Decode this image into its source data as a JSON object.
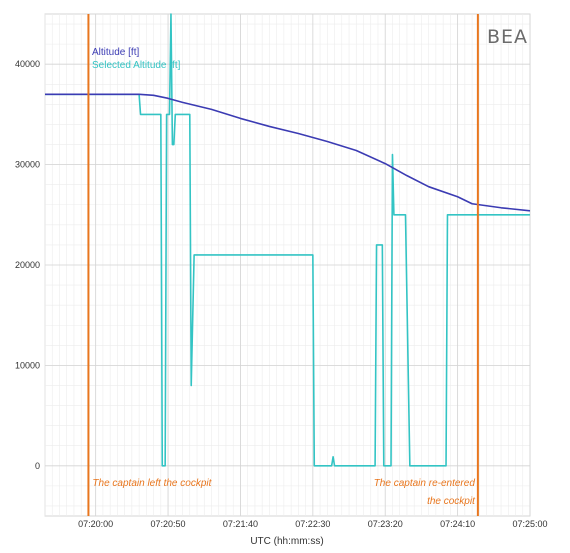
{
  "chart_data": {
    "type": "line",
    "logo": "BEA",
    "xlabel": "UTC (hh:mm:ss)",
    "ylabel": "",
    "xlim": [
      "07:19:25",
      "07:25:00"
    ],
    "ylim": [
      -5000,
      45000
    ],
    "x_tick_labels": [
      "07:20:00",
      "07:20:50",
      "07:21:40",
      "07:22:30",
      "07:23:20",
      "07:24:10",
      "07:25:00"
    ],
    "y_tick_values": [
      0,
      10000,
      20000,
      30000,
      40000
    ],
    "y_tick_labels": [
      "0",
      "10000",
      "20000",
      "30000",
      "40000"
    ],
    "grid": true,
    "legend_position": "top-left",
    "series": [
      {
        "name": "Altitude [ft]",
        "color": "#3b3bb3",
        "points": [
          [
            "07:19:25",
            37000
          ],
          [
            "07:20:05",
            37000
          ],
          [
            "07:20:30",
            37000
          ],
          [
            "07:20:40",
            36900
          ],
          [
            "07:20:50",
            36600
          ],
          [
            "07:21:00",
            36200
          ],
          [
            "07:21:20",
            35500
          ],
          [
            "07:21:40",
            34600
          ],
          [
            "07:22:00",
            33800
          ],
          [
            "07:22:20",
            33100
          ],
          [
            "07:22:40",
            32300
          ],
          [
            "07:23:00",
            31400
          ],
          [
            "07:23:20",
            30100
          ],
          [
            "07:23:35",
            28900
          ],
          [
            "07:23:50",
            27800
          ],
          [
            "07:24:10",
            26800
          ],
          [
            "07:24:20",
            26100
          ],
          [
            "07:24:40",
            25700
          ],
          [
            "07:25:00",
            25400
          ]
        ]
      },
      {
        "name": "Selected Altitude [ft]",
        "color": "#33c4c4",
        "points": [
          [
            "07:19:25",
            37000
          ],
          [
            "07:20:30",
            37000
          ],
          [
            "07:20:31",
            35000
          ],
          [
            "07:20:45",
            35000
          ],
          [
            "07:20:46",
            0
          ],
          [
            "07:20:48",
            0
          ],
          [
            "07:20:49",
            35000
          ],
          [
            "07:20:51",
            35000
          ],
          [
            "07:20:52",
            45000
          ],
          [
            "07:20:53",
            32000
          ],
          [
            "07:20:54",
            32000
          ],
          [
            "07:20:55",
            35000
          ],
          [
            "07:21:05",
            35000
          ],
          [
            "07:21:06",
            8000
          ],
          [
            "07:21:08",
            21000
          ],
          [
            "07:22:30",
            21000
          ],
          [
            "07:22:31",
            0
          ],
          [
            "07:22:43",
            0
          ],
          [
            "07:22:44",
            900
          ],
          [
            "07:22:45",
            0
          ],
          [
            "07:23:13",
            0
          ],
          [
            "07:23:14",
            22000
          ],
          [
            "07:23:18",
            22000
          ],
          [
            "07:23:19",
            0
          ],
          [
            "07:23:24",
            0
          ],
          [
            "07:23:25",
            31000
          ],
          [
            "07:23:26",
            25000
          ],
          [
            "07:23:34",
            25000
          ],
          [
            "07:23:37",
            0
          ],
          [
            "07:24:02",
            0
          ],
          [
            "07:24:03",
            25000
          ],
          [
            "07:25:00",
            25000
          ]
        ]
      }
    ],
    "markers": [
      {
        "time": "07:19:55",
        "color": "#e8761e",
        "label": [
          "The captain left the cockpit"
        ]
      },
      {
        "time": "07:24:24",
        "color": "#e8761e",
        "label": [
          "The captain re-entered",
          "the cockpit"
        ]
      }
    ]
  }
}
